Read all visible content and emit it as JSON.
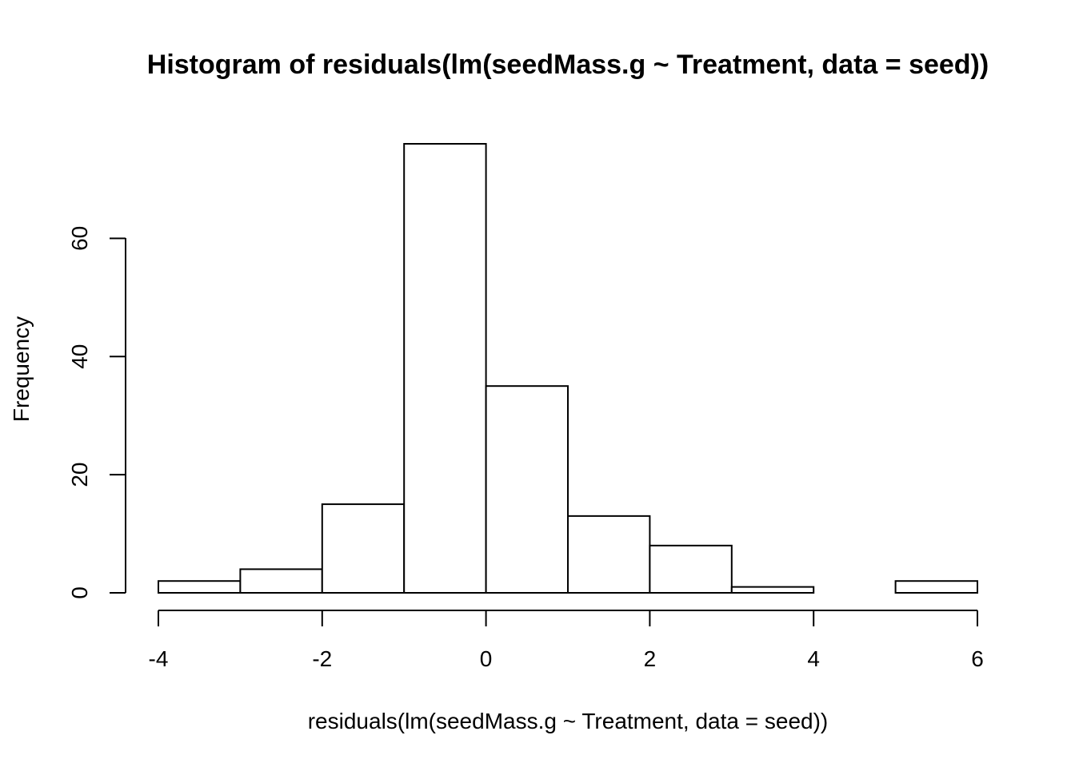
{
  "chart_data": {
    "type": "bar",
    "title": "Histogram of residuals(lm(seedMass.g ~ Treatment, data = seed))",
    "xlabel": "residuals(lm(seedMass.g ~ Treatment, data = seed))",
    "ylabel": "Frequency",
    "bins": [
      {
        "from": -4,
        "to": -3,
        "count": 2
      },
      {
        "from": -3,
        "to": -2,
        "count": 4
      },
      {
        "from": -2,
        "to": -1,
        "count": 15
      },
      {
        "from": -1,
        "to": 0,
        "count": 76
      },
      {
        "from": 0,
        "to": 1,
        "count": 35
      },
      {
        "from": 1,
        "to": 2,
        "count": 13
      },
      {
        "from": 2,
        "to": 3,
        "count": 8
      },
      {
        "from": 3,
        "to": 4,
        "count": 1
      },
      {
        "from": 4,
        "to": 5,
        "count": 0
      },
      {
        "from": 5,
        "to": 6,
        "count": 2
      }
    ],
    "xlim": [
      -4,
      6
    ],
    "ylim": [
      0,
      76
    ],
    "xticks": [
      -4,
      -2,
      0,
      2,
      4,
      6
    ],
    "yticks": [
      0,
      20,
      40,
      60
    ],
    "grid": false,
    "colors": {
      "bar_fill": "#ffffff",
      "bar_stroke": "#000000"
    }
  }
}
